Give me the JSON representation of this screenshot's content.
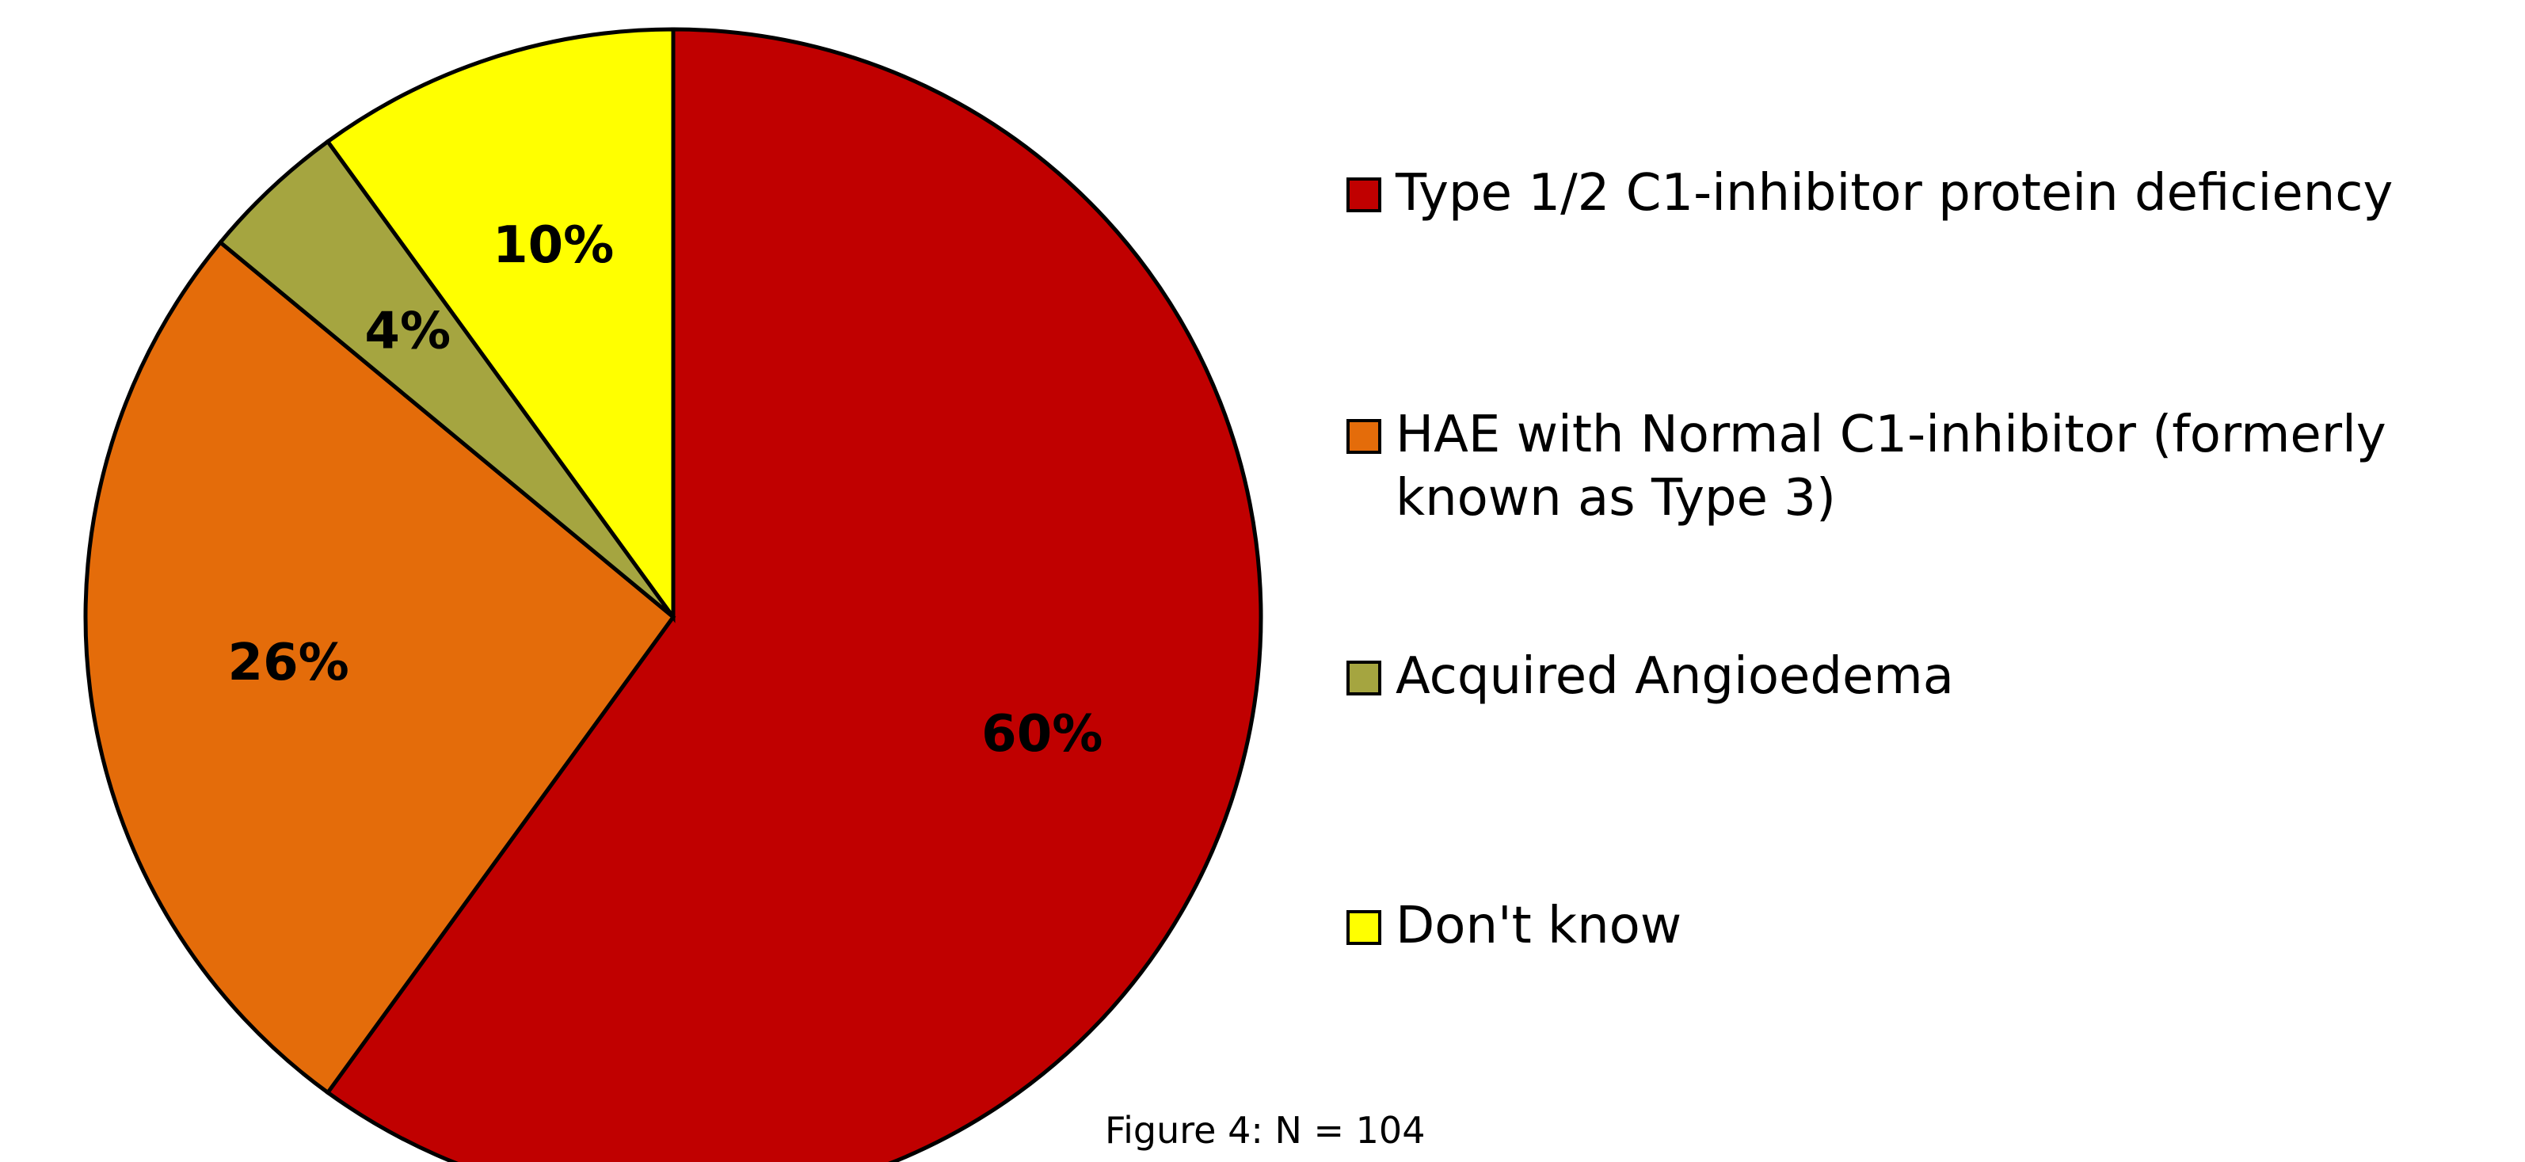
{
  "chart_data": {
    "type": "pie",
    "categories": [
      "Type 1/2 C1-inhibitor protein deficiency",
      "HAE with Normal C1-inhibitor (formerly known as Type 3)",
      "Acquired Angioedema",
      "Don't know"
    ],
    "values": [
      60,
      26,
      4,
      10
    ],
    "value_labels": [
      "60%",
      "26%",
      "4%",
      "10%"
    ],
    "colors": [
      "#c00000",
      "#e46c0a",
      "#a5a540",
      "#ffff00"
    ],
    "caption": "Figure 4: N = 104"
  }
}
